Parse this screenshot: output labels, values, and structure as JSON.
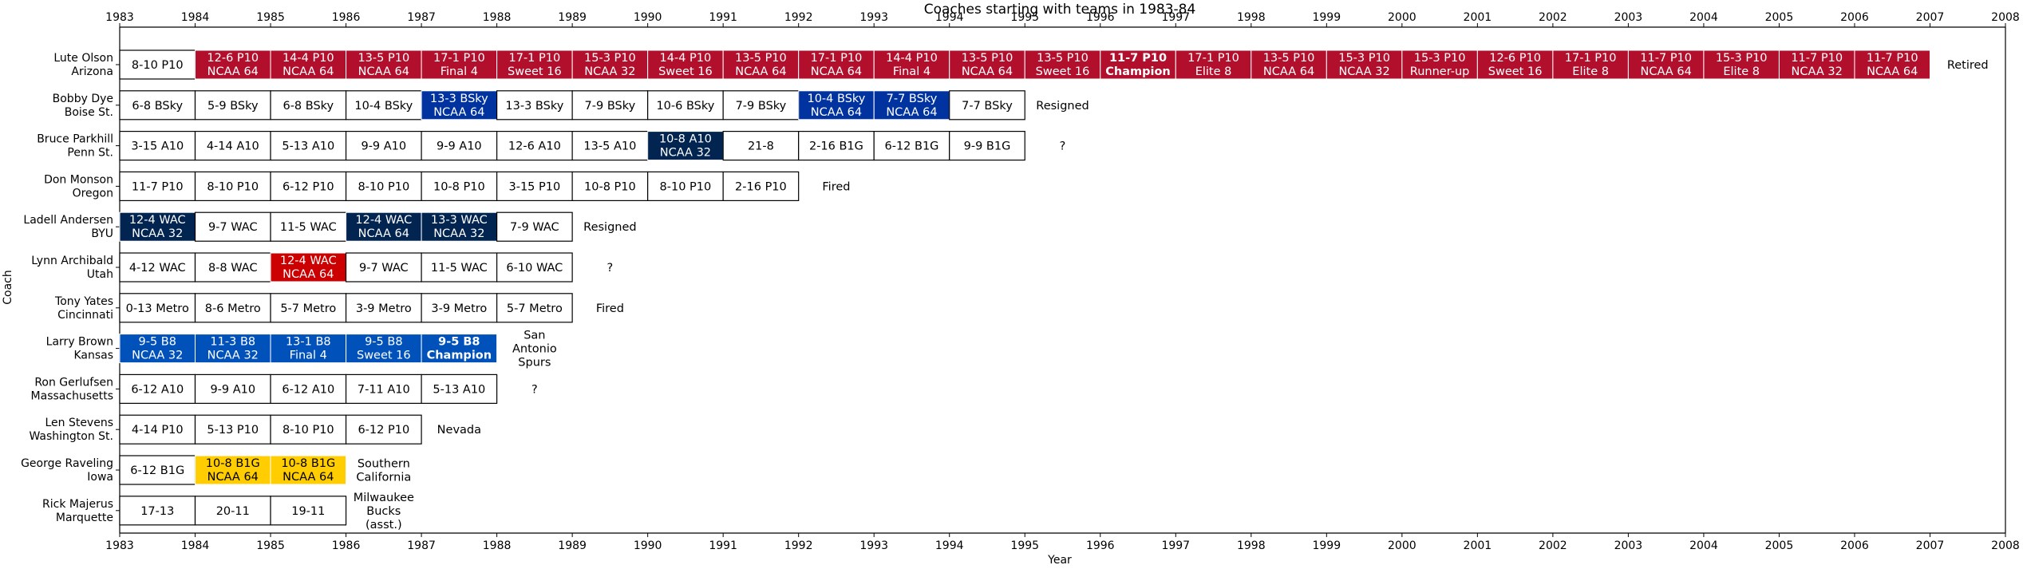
{
  "chart_data": {
    "type": "timeline",
    "title": "Coaches starting with teams in 1983-84",
    "xlabel": "Year",
    "ylabel": "Coach",
    "xlim": [
      1983,
      2008
    ],
    "xticks": [
      "1983",
      "1984",
      "1985",
      "1986",
      "1987",
      "1988",
      "1989",
      "1990",
      "1991",
      "1992",
      "1993",
      "1994",
      "1995",
      "1996",
      "1997",
      "1998",
      "1999",
      "2000",
      "2001",
      "2002",
      "2003",
      "2004",
      "2005",
      "2006",
      "2007",
      "2008"
    ],
    "colors": {
      "arizona": "#B20F2D",
      "byu_navy": "#012451",
      "blue_bsky": "#0033A0",
      "kansas": "#0051BA",
      "utah": "#CC0000",
      "iowa": "#FFCD00",
      "white": "#ffffff"
    },
    "coaches": [
      {
        "label": [
          "Lute Olson",
          "Arizona"
        ],
        "seasons": [
          {
            "start": 1983,
            "lines": [
              "8-10 P10"
            ],
            "color": "white"
          },
          {
            "start": 1984,
            "lines": [
              "12-6 P10",
              "NCAA 64"
            ],
            "color": "arizona"
          },
          {
            "start": 1985,
            "lines": [
              "14-4 P10",
              "NCAA 64"
            ],
            "color": "arizona"
          },
          {
            "start": 1986,
            "lines": [
              "13-5 P10",
              "NCAA 64"
            ],
            "color": "arizona"
          },
          {
            "start": 1987,
            "lines": [
              "17-1 P10",
              "Final 4"
            ],
            "color": "arizona"
          },
          {
            "start": 1988,
            "lines": [
              "17-1 P10",
              "Sweet 16"
            ],
            "color": "arizona"
          },
          {
            "start": 1989,
            "lines": [
              "15-3 P10",
              "NCAA 32"
            ],
            "color": "arizona"
          },
          {
            "start": 1990,
            "lines": [
              "14-4 P10",
              "Sweet 16"
            ],
            "color": "arizona"
          },
          {
            "start": 1991,
            "lines": [
              "13-5 P10",
              "NCAA 64"
            ],
            "color": "arizona"
          },
          {
            "start": 1992,
            "lines": [
              "17-1 P10",
              "NCAA 64"
            ],
            "color": "arizona"
          },
          {
            "start": 1993,
            "lines": [
              "14-4 P10",
              "Final 4"
            ],
            "color": "arizona"
          },
          {
            "start": 1994,
            "lines": [
              "13-5 P10",
              "NCAA 64"
            ],
            "color": "arizona"
          },
          {
            "start": 1995,
            "lines": [
              "13-5 P10",
              "Sweet 16"
            ],
            "color": "arizona"
          },
          {
            "start": 1996,
            "lines": [
              "11-7 P10",
              "Champion"
            ],
            "color": "arizona",
            "bold": true
          },
          {
            "start": 1997,
            "lines": [
              "17-1 P10",
              "Elite 8"
            ],
            "color": "arizona"
          },
          {
            "start": 1998,
            "lines": [
              "13-5 P10",
              "NCAA 64"
            ],
            "color": "arizona"
          },
          {
            "start": 1999,
            "lines": [
              "15-3 P10",
              "NCAA 32"
            ],
            "color": "arizona"
          },
          {
            "start": 2000,
            "lines": [
              "15-3 P10",
              "Runner-up"
            ],
            "color": "arizona"
          },
          {
            "start": 2001,
            "lines": [
              "12-6 P10",
              "Sweet 16"
            ],
            "color": "arizona"
          },
          {
            "start": 2002,
            "lines": [
              "17-1 P10",
              "Elite 8"
            ],
            "color": "arizona"
          },
          {
            "start": 2003,
            "lines": [
              "11-7 P10",
              "NCAA 64"
            ],
            "color": "arizona"
          },
          {
            "start": 2004,
            "lines": [
              "15-3 P10",
              "Elite 8"
            ],
            "color": "arizona"
          },
          {
            "start": 2005,
            "lines": [
              "11-7 P10",
              "NCAA 32"
            ],
            "color": "arizona"
          },
          {
            "start": 2006,
            "lines": [
              "11-7 P10",
              "NCAA 64"
            ],
            "color": "arizona"
          }
        ],
        "outcome": [
          "Retired"
        ]
      },
      {
        "label": [
          "Bobby Dye",
          "Boise St."
        ],
        "seasons": [
          {
            "start": 1983,
            "lines": [
              "6-8 BSky"
            ],
            "color": "white"
          },
          {
            "start": 1984,
            "lines": [
              "5-9 BSky"
            ],
            "color": "white"
          },
          {
            "start": 1985,
            "lines": [
              "6-8 BSky"
            ],
            "color": "white"
          },
          {
            "start": 1986,
            "lines": [
              "10-4 BSky"
            ],
            "color": "white"
          },
          {
            "start": 1987,
            "lines": [
              "13-3 BSky",
              "NCAA 64"
            ],
            "color": "blue_bsky"
          },
          {
            "start": 1988,
            "lines": [
              "13-3 BSky"
            ],
            "color": "white"
          },
          {
            "start": 1989,
            "lines": [
              "7-9 BSky"
            ],
            "color": "white"
          },
          {
            "start": 1990,
            "lines": [
              "10-6 BSky"
            ],
            "color": "white"
          },
          {
            "start": 1991,
            "lines": [
              "7-9 BSky"
            ],
            "color": "white"
          },
          {
            "start": 1992,
            "lines": [
              "10-4 BSky",
              "NCAA 64"
            ],
            "color": "blue_bsky"
          },
          {
            "start": 1993,
            "lines": [
              "7-7 BSky",
              "NCAA 64"
            ],
            "color": "blue_bsky"
          },
          {
            "start": 1994,
            "lines": [
              "7-7 BSky"
            ],
            "color": "white"
          }
        ],
        "outcome": [
          "Resigned"
        ]
      },
      {
        "label": [
          "Bruce Parkhill",
          "Penn St."
        ],
        "seasons": [
          {
            "start": 1983,
            "lines": [
              "3-15 A10"
            ],
            "color": "white"
          },
          {
            "start": 1984,
            "lines": [
              "4-14 A10"
            ],
            "color": "white"
          },
          {
            "start": 1985,
            "lines": [
              "5-13 A10"
            ],
            "color": "white"
          },
          {
            "start": 1986,
            "lines": [
              "9-9 A10"
            ],
            "color": "white"
          },
          {
            "start": 1987,
            "lines": [
              "9-9 A10"
            ],
            "color": "white"
          },
          {
            "start": 1988,
            "lines": [
              "12-6 A10"
            ],
            "color": "white"
          },
          {
            "start": 1989,
            "lines": [
              "13-5 A10"
            ],
            "color": "white"
          },
          {
            "start": 1990,
            "lines": [
              "10-8 A10",
              "NCAA 32"
            ],
            "color": "byu_navy"
          },
          {
            "start": 1991,
            "lines": [
              "21-8"
            ],
            "color": "white"
          },
          {
            "start": 1992,
            "lines": [
              "2-16 B1G"
            ],
            "color": "white"
          },
          {
            "start": 1993,
            "lines": [
              "6-12 B1G"
            ],
            "color": "white"
          },
          {
            "start": 1994,
            "lines": [
              "9-9 B1G"
            ],
            "color": "white"
          }
        ],
        "outcome": [
          "?"
        ]
      },
      {
        "label": [
          "Don Monson",
          "Oregon"
        ],
        "seasons": [
          {
            "start": 1983,
            "lines": [
              "11-7 P10"
            ],
            "color": "white"
          },
          {
            "start": 1984,
            "lines": [
              "8-10 P10"
            ],
            "color": "white"
          },
          {
            "start": 1985,
            "lines": [
              "6-12 P10"
            ],
            "color": "white"
          },
          {
            "start": 1986,
            "lines": [
              "8-10 P10"
            ],
            "color": "white"
          },
          {
            "start": 1987,
            "lines": [
              "10-8 P10"
            ],
            "color": "white"
          },
          {
            "start": 1988,
            "lines": [
              "3-15 P10"
            ],
            "color": "white"
          },
          {
            "start": 1989,
            "lines": [
              "10-8 P10"
            ],
            "color": "white"
          },
          {
            "start": 1990,
            "lines": [
              "8-10 P10"
            ],
            "color": "white"
          },
          {
            "start": 1991,
            "lines": [
              "2-16 P10"
            ],
            "color": "white"
          }
        ],
        "outcome": [
          "Fired"
        ]
      },
      {
        "label": [
          "Ladell Andersen",
          "BYU"
        ],
        "seasons": [
          {
            "start": 1983,
            "lines": [
              "12-4 WAC",
              "NCAA 32"
            ],
            "color": "byu_navy"
          },
          {
            "start": 1984,
            "lines": [
              "9-7 WAC"
            ],
            "color": "white"
          },
          {
            "start": 1985,
            "lines": [
              "11-5 WAC"
            ],
            "color": "white"
          },
          {
            "start": 1986,
            "lines": [
              "12-4 WAC",
              "NCAA 64"
            ],
            "color": "byu_navy"
          },
          {
            "start": 1987,
            "lines": [
              "13-3 WAC",
              "NCAA 32"
            ],
            "color": "byu_navy"
          },
          {
            "start": 1988,
            "lines": [
              "7-9 WAC"
            ],
            "color": "white"
          }
        ],
        "outcome": [
          "Resigned"
        ]
      },
      {
        "label": [
          "Lynn Archibald",
          "Utah"
        ],
        "seasons": [
          {
            "start": 1983,
            "lines": [
              "4-12 WAC"
            ],
            "color": "white"
          },
          {
            "start": 1984,
            "lines": [
              "8-8 WAC"
            ],
            "color": "white"
          },
          {
            "start": 1985,
            "lines": [
              "12-4 WAC",
              "NCAA 64"
            ],
            "color": "utah"
          },
          {
            "start": 1986,
            "lines": [
              "9-7 WAC"
            ],
            "color": "white"
          },
          {
            "start": 1987,
            "lines": [
              "11-5 WAC"
            ],
            "color": "white"
          },
          {
            "start": 1988,
            "lines": [
              "6-10 WAC"
            ],
            "color": "white"
          }
        ],
        "outcome": [
          "?"
        ]
      },
      {
        "label": [
          "Tony Yates",
          "Cincinnati"
        ],
        "seasons": [
          {
            "start": 1983,
            "lines": [
              "0-13 Metro"
            ],
            "color": "white"
          },
          {
            "start": 1984,
            "lines": [
              "8-6 Metro"
            ],
            "color": "white"
          },
          {
            "start": 1985,
            "lines": [
              "5-7 Metro"
            ],
            "color": "white"
          },
          {
            "start": 1986,
            "lines": [
              "3-9 Metro"
            ],
            "color": "white"
          },
          {
            "start": 1987,
            "lines": [
              "3-9 Metro"
            ],
            "color": "white"
          },
          {
            "start": 1988,
            "lines": [
              "5-7 Metro"
            ],
            "color": "white"
          }
        ],
        "outcome": [
          "Fired"
        ]
      },
      {
        "label": [
          "Larry Brown",
          "Kansas"
        ],
        "seasons": [
          {
            "start": 1983,
            "lines": [
              "9-5 B8",
              "NCAA 32"
            ],
            "color": "kansas"
          },
          {
            "start": 1984,
            "lines": [
              "11-3 B8",
              "NCAA 32"
            ],
            "color": "kansas"
          },
          {
            "start": 1985,
            "lines": [
              "13-1 B8",
              "Final 4"
            ],
            "color": "kansas"
          },
          {
            "start": 1986,
            "lines": [
              "9-5 B8",
              "Sweet 16"
            ],
            "color": "kansas"
          },
          {
            "start": 1987,
            "lines": [
              "9-5 B8",
              "Champion"
            ],
            "color": "kansas",
            "bold": true
          }
        ],
        "outcome": [
          "San",
          "Antonio",
          "Spurs"
        ]
      },
      {
        "label": [
          "Ron Gerlufsen",
          "Massachusetts"
        ],
        "seasons": [
          {
            "start": 1983,
            "lines": [
              "6-12 A10"
            ],
            "color": "white"
          },
          {
            "start": 1984,
            "lines": [
              "9-9 A10"
            ],
            "color": "white"
          },
          {
            "start": 1985,
            "lines": [
              "6-12 A10"
            ],
            "color": "white"
          },
          {
            "start": 1986,
            "lines": [
              "7-11 A10"
            ],
            "color": "white"
          },
          {
            "start": 1987,
            "lines": [
              "5-13 A10"
            ],
            "color": "white"
          }
        ],
        "outcome": [
          "?"
        ]
      },
      {
        "label": [
          "Len Stevens",
          "Washington St."
        ],
        "seasons": [
          {
            "start": 1983,
            "lines": [
              "4-14 P10"
            ],
            "color": "white"
          },
          {
            "start": 1984,
            "lines": [
              "5-13 P10"
            ],
            "color": "white"
          },
          {
            "start": 1985,
            "lines": [
              "8-10 P10"
            ],
            "color": "white"
          },
          {
            "start": 1986,
            "lines": [
              "6-12 P10"
            ],
            "color": "white"
          }
        ],
        "outcome": [
          "Nevada"
        ]
      },
      {
        "label": [
          "George Raveling",
          "Iowa"
        ],
        "seasons": [
          {
            "start": 1983,
            "lines": [
              "6-12 B1G"
            ],
            "color": "white"
          },
          {
            "start": 1984,
            "lines": [
              "10-8 B1G",
              "NCAA 64"
            ],
            "color": "iowa"
          },
          {
            "start": 1985,
            "lines": [
              "10-8 B1G",
              "NCAA 64"
            ],
            "color": "iowa"
          }
        ],
        "outcome": [
          "Southern",
          "California"
        ]
      },
      {
        "label": [
          "Rick Majerus",
          "Marquette"
        ],
        "seasons": [
          {
            "start": 1983,
            "lines": [
              "17-13"
            ],
            "color": "white"
          },
          {
            "start": 1984,
            "lines": [
              "20-11"
            ],
            "color": "white"
          },
          {
            "start": 1985,
            "lines": [
              "19-11"
            ],
            "color": "white"
          }
        ],
        "outcome": [
          "Milwaukee",
          "Bucks",
          "(asst.)"
        ]
      }
    ]
  }
}
